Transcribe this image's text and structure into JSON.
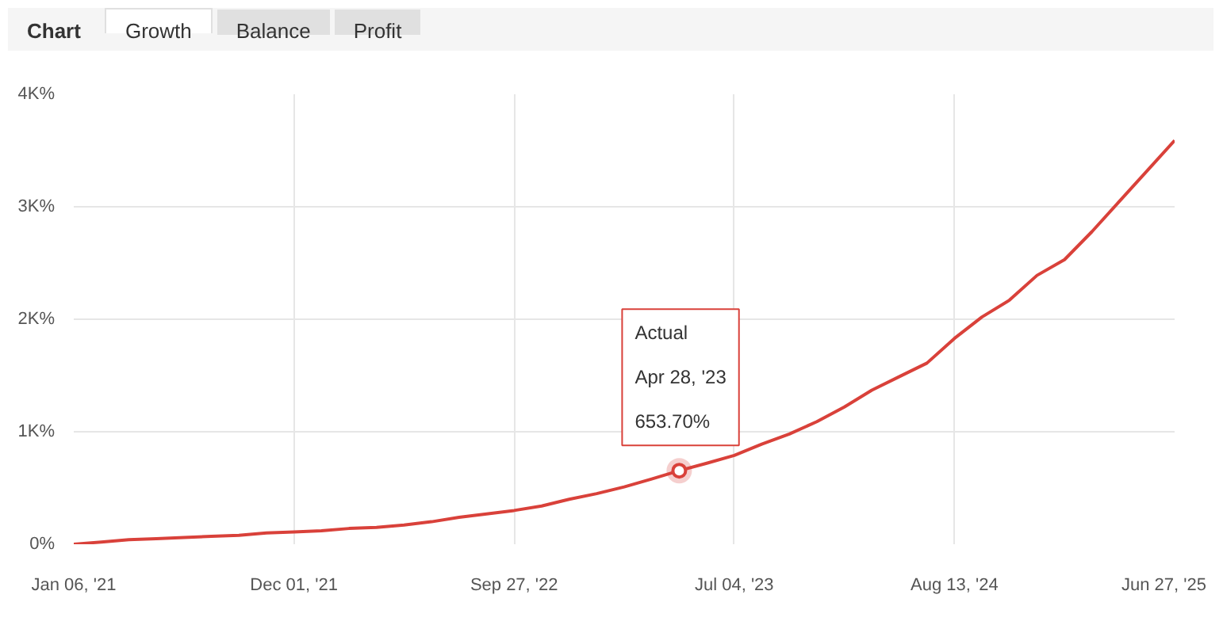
{
  "chart_data": {
    "type": "line",
    "categories": [
      "Jan 06, '21",
      null,
      null,
      null,
      null,
      null,
      null,
      null,
      "Dec 01, '21",
      null,
      null,
      null,
      null,
      null,
      null,
      null,
      "Sep 27, '22",
      null,
      null,
      null,
      null,
      null,
      null,
      null,
      "Jul 04, '23",
      null,
      null,
      null,
      null,
      null,
      null,
      null,
      "Aug 13, '24",
      null,
      null,
      null,
      null,
      null,
      null,
      null,
      "Jun 27, '25"
    ],
    "series": [
      {
        "color": "#d9413a",
        "values": [
          0,
          20,
          40,
          50,
          60,
          70,
          80,
          100,
          110,
          120,
          140,
          150,
          170,
          200,
          240,
          270,
          300,
          340,
          400,
          450,
          510,
          580,
          653.7,
          720,
          790,
          890,
          980,
          1090,
          1220,
          1370,
          1490,
          1610,
          1830,
          2020,
          2170,
          2390,
          2530,
          2780,
          3050,
          3320,
          3590
        ]
      }
    ],
    "ylim": [
      0,
      4000
    ],
    "yticks": [
      {
        "value": 0,
        "label": "0%"
      },
      {
        "value": 1000,
        "label": "1K%"
      },
      {
        "value": 2000,
        "label": "2K%"
      },
      {
        "value": 3000,
        "label": "3K%"
      },
      {
        "value": 4000,
        "label": "4K%"
      }
    ],
    "grid": true,
    "marker": "none",
    "line_style": "solid",
    "annotations": [
      "Chart",
      "Growth",
      "Balance",
      "Profit",
      {
        "text": "Actual\nApr 28, '23\n653.70%",
        "y": 653.7
      }
    ]
  }
}
